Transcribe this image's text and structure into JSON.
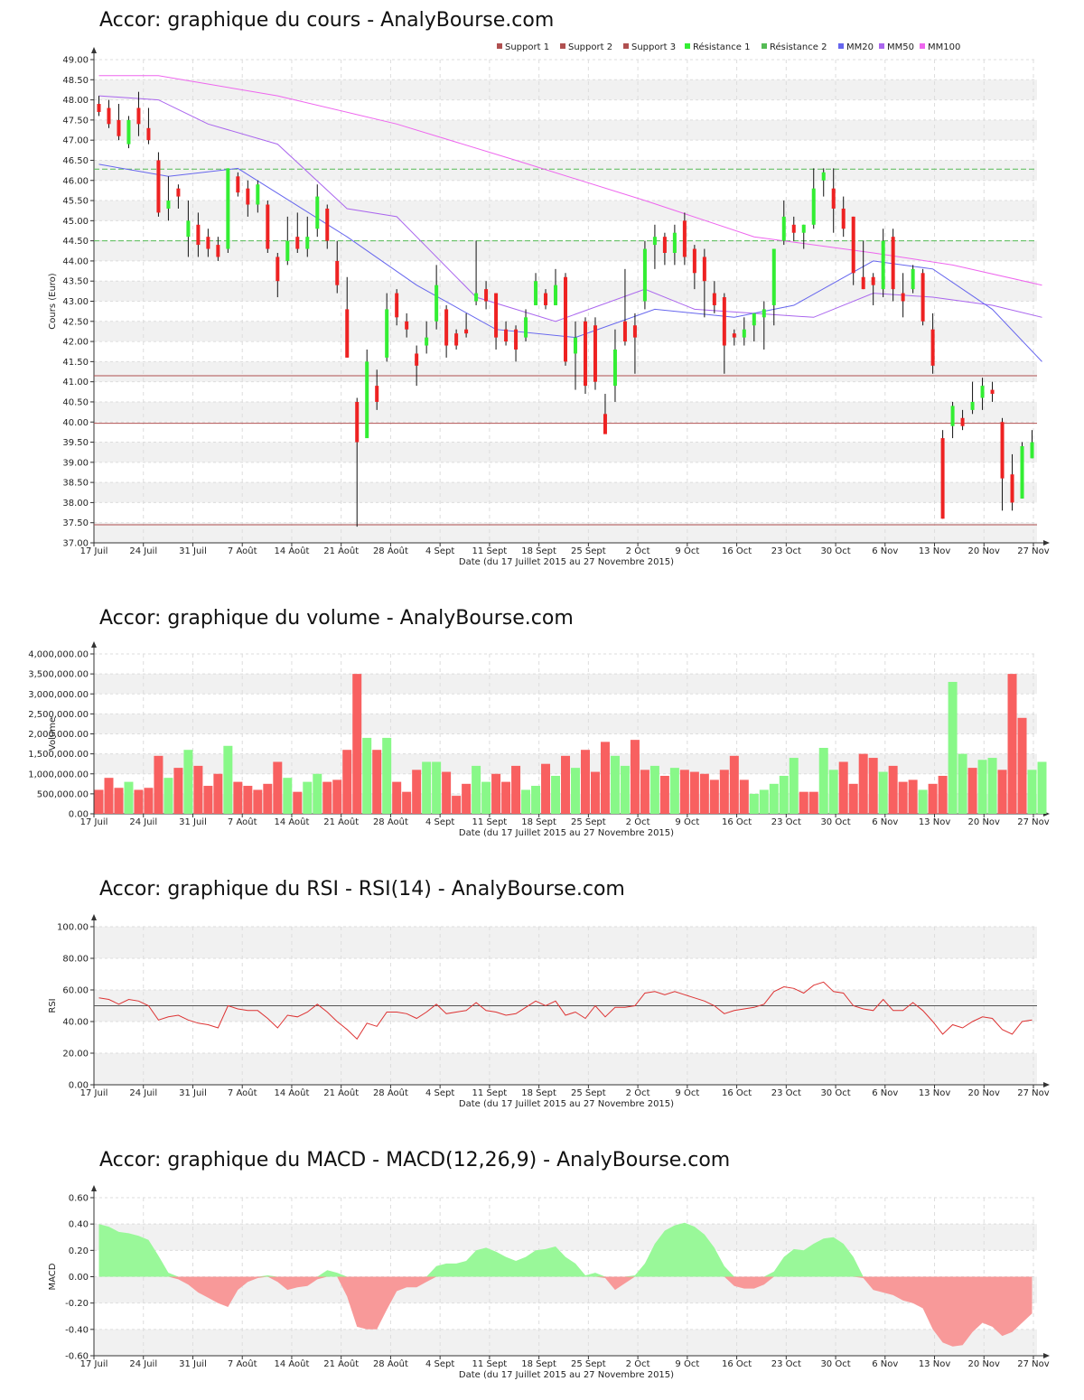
{
  "price_panel": {
    "title": "Accor: graphique du cours - AnalyBourse.com"
  },
  "volume_panel": {
    "title": "Accor: graphique du volume - AnalyBourse.com"
  },
  "rsi_panel": {
    "title": "Accor: graphique du RSI - RSI(14) - AnalyBourse.com"
  },
  "macd_panel": {
    "title": "Accor: graphique du MACD - MACD(12,26,9) - AnalyBourse.com"
  },
  "colors": {
    "up": "#33ee33",
    "down": "#ee2222",
    "vol_up": "#88f888",
    "vol_down": "#f86060",
    "mm20": "#6666ee",
    "mm50": "#aa66ee",
    "mm100": "#ee66ee",
    "support": "#b05050",
    "resistance": "#55bb55",
    "rsi_line": "#dd3333",
    "macd_pos": "#99f899",
    "macd_neg": "#f89999"
  },
  "chart_data": [
    {
      "type": "candlestick",
      "title": "Accor: graphique du cours - AnalyBourse.com",
      "xlabel": "Date (du 17 Juillet 2015 au 27 Novembre 2015)",
      "ylabel": "Cours (Euro)",
      "ylim": [
        37.0,
        49.0
      ],
      "yticks": [
        "37.00",
        "37.50",
        "38.00",
        "38.50",
        "39.00",
        "39.50",
        "40.00",
        "40.50",
        "41.00",
        "41.50",
        "42.00",
        "42.50",
        "43.00",
        "43.50",
        "44.00",
        "44.50",
        "45.00",
        "45.50",
        "46.00",
        "46.50",
        "47.00",
        "47.50",
        "48.00",
        "48.50",
        "49.00"
      ],
      "xticks": [
        "17 Juil",
        "24 Juil",
        "31 Juil",
        "7 Août",
        "14 Août",
        "21 Août",
        "28 Août",
        "4 Sept",
        "11 Sept",
        "18 Sept",
        "25 Sept",
        "2 Oct",
        "9 Oct",
        "16 Oct",
        "23 Oct",
        "30 Oct",
        "6 Nov",
        "13 Nov",
        "20 Nov",
        "27 Nov"
      ],
      "legend": [
        "Support 1",
        "Support 2",
        "Support 3",
        "Résistance 1",
        "Résistance 2",
        "MM20",
        "MM50",
        "MM100"
      ],
      "legend_position": "top-right",
      "support_levels": [
        41.15,
        39.97,
        37.45
      ],
      "resistance_levels": [
        46.28,
        44.5
      ],
      "candles": [
        [
          47.9,
          47.7,
          48.1,
          47.6
        ],
        [
          47.8,
          47.4,
          48.0,
          47.3
        ],
        [
          47.5,
          47.1,
          47.9,
          47.0
        ],
        [
          46.9,
          47.5,
          47.6,
          46.8
        ],
        [
          47.8,
          47.4,
          48.2,
          47.1
        ],
        [
          47.3,
          47.0,
          47.8,
          46.9
        ],
        [
          46.5,
          45.2,
          46.7,
          45.1
        ],
        [
          45.3,
          45.5,
          46.1,
          45.0
        ],
        [
          45.8,
          45.6,
          45.9,
          45.3
        ],
        [
          44.6,
          45.0,
          45.5,
          44.1
        ],
        [
          44.9,
          44.4,
          45.2,
          44.1
        ],
        [
          44.6,
          44.3,
          44.8,
          44.1
        ],
        [
          44.4,
          44.1,
          44.6,
          44.0
        ],
        [
          44.3,
          46.3,
          46.3,
          44.2
        ],
        [
          46.1,
          45.7,
          46.2,
          45.6
        ],
        [
          45.8,
          45.4,
          46.0,
          45.1
        ],
        [
          45.4,
          45.9,
          46.0,
          45.2
        ],
        [
          45.4,
          44.3,
          45.5,
          44.2
        ],
        [
          44.1,
          43.5,
          44.2,
          43.1
        ],
        [
          44.0,
          44.5,
          45.1,
          43.9
        ],
        [
          44.6,
          44.3,
          45.2,
          44.2
        ],
        [
          44.3,
          44.6,
          45.1,
          44.1
        ],
        [
          44.8,
          45.6,
          45.9,
          44.6
        ],
        [
          45.3,
          44.5,
          45.4,
          44.3
        ],
        [
          44.0,
          43.4,
          44.5,
          43.2
        ],
        [
          42.8,
          41.6,
          43.6,
          41.6
        ],
        [
          40.5,
          39.5,
          40.6,
          37.4
        ],
        [
          39.6,
          41.5,
          41.8,
          39.9
        ],
        [
          40.9,
          40.5,
          41.3,
          40.3
        ],
        [
          41.6,
          42.8,
          43.2,
          41.5
        ],
        [
          43.2,
          42.6,
          43.3,
          42.4
        ],
        [
          42.5,
          42.3,
          42.7,
          42.1
        ],
        [
          41.7,
          41.4,
          41.9,
          40.9
        ],
        [
          41.9,
          42.1,
          42.5,
          41.7
        ],
        [
          42.5,
          43.4,
          43.9,
          42.3
        ],
        [
          42.8,
          41.9,
          42.9,
          41.6
        ],
        [
          42.2,
          41.9,
          42.3,
          41.8
        ],
        [
          42.3,
          42.2,
          42.7,
          42.1
        ],
        [
          43.0,
          43.2,
          44.5,
          42.9
        ],
        [
          43.3,
          43.0,
          43.5,
          42.8
        ],
        [
          43.2,
          42.1,
          43.2,
          41.8
        ],
        [
          42.3,
          42.0,
          42.5,
          41.9
        ],
        [
          42.3,
          41.8,
          42.4,
          41.5
        ],
        [
          42.1,
          42.6,
          42.8,
          42.0
        ],
        [
          42.9,
          43.5,
          43.7,
          42.9
        ],
        [
          43.2,
          42.9,
          43.3,
          42.8
        ],
        [
          42.9,
          43.4,
          43.8,
          42.9
        ],
        [
          43.6,
          41.5,
          43.7,
          41.4
        ],
        [
          41.7,
          42.1,
          42.5,
          40.8
        ],
        [
          42.5,
          40.9,
          42.6,
          40.7
        ],
        [
          42.4,
          41.0,
          42.6,
          40.8
        ],
        [
          40.2,
          39.7,
          40.7,
          39.9
        ],
        [
          40.9,
          41.8,
          42.3,
          40.5
        ],
        [
          42.5,
          42.0,
          43.8,
          41.9
        ],
        [
          42.4,
          42.1,
          42.7,
          41.2
        ],
        [
          43.0,
          44.3,
          44.5,
          42.8
        ],
        [
          44.4,
          44.6,
          44.9,
          43.8
        ],
        [
          44.6,
          44.2,
          44.7,
          43.9
        ],
        [
          44.2,
          44.7,
          44.9,
          43.9
        ],
        [
          45.0,
          44.1,
          45.2,
          43.9
        ],
        [
          44.3,
          43.7,
          44.4,
          43.3
        ],
        [
          44.1,
          43.5,
          44.3,
          42.6
        ],
        [
          43.2,
          42.9,
          43.5,
          42.7
        ],
        [
          43.1,
          41.9,
          43.2,
          41.2
        ],
        [
          42.2,
          42.1,
          42.3,
          41.9
        ],
        [
          42.1,
          42.3,
          42.6,
          41.9
        ],
        [
          42.4,
          42.7,
          42.7,
          42.0
        ],
        [
          42.6,
          42.8,
          43.0,
          41.8
        ],
        [
          42.9,
          44.3,
          44.3,
          42.4
        ],
        [
          44.5,
          45.1,
          45.5,
          44.4
        ],
        [
          44.9,
          44.7,
          45.1,
          44.5
        ],
        [
          44.7,
          44.9,
          44.9,
          44.3
        ],
        [
          44.9,
          45.8,
          46.3,
          44.8
        ],
        [
          46.0,
          46.2,
          46.3,
          45.6
        ],
        [
          45.8,
          45.3,
          46.3,
          44.7
        ],
        [
          45.3,
          44.8,
          45.6,
          44.6
        ],
        [
          45.1,
          43.7,
          45.1,
          43.4
        ],
        [
          43.6,
          43.3,
          44.5,
          43.3
        ],
        [
          43.6,
          43.4,
          43.7,
          42.9
        ],
        [
          43.3,
          44.5,
          44.8,
          43.1
        ],
        [
          44.6,
          43.3,
          44.8,
          43.0
        ],
        [
          43.2,
          43.0,
          43.7,
          42.6
        ],
        [
          43.3,
          43.8,
          43.9,
          43.2
        ],
        [
          43.7,
          42.5,
          43.8,
          42.4
        ],
        [
          42.3,
          41.4,
          42.7,
          41.2
        ],
        [
          39.6,
          37.6,
          39.8,
          37.6
        ],
        [
          39.9,
          40.4,
          40.5,
          39.6
        ],
        [
          40.1,
          39.9,
          40.3,
          39.8
        ],
        [
          40.3,
          40.5,
          41.0,
          40.2
        ],
        [
          40.6,
          40.9,
          41.1,
          40.3
        ],
        [
          40.8,
          40.7,
          41.0,
          40.5
        ],
        [
          40.0,
          38.6,
          40.1,
          37.8
        ],
        [
          38.7,
          38.0,
          39.2,
          37.8
        ],
        [
          38.1,
          39.4,
          39.5,
          38.1
        ],
        [
          39.1,
          39.5,
          39.8,
          39.1
        ]
      ],
      "mm20": [
        [
          0,
          46.4
        ],
        [
          7,
          46.1
        ],
        [
          14,
          46.3
        ],
        [
          25,
          44.6
        ],
        [
          32,
          43.4
        ],
        [
          40,
          42.3
        ],
        [
          48,
          42.1
        ],
        [
          56,
          42.8
        ],
        [
          64,
          42.6
        ],
        [
          70,
          42.9
        ],
        [
          78,
          44.0
        ],
        [
          84,
          43.8
        ],
        [
          90,
          42.8
        ],
        [
          95,
          41.5
        ]
      ],
      "mm50": [
        [
          0,
          48.1
        ],
        [
          6,
          48.0
        ],
        [
          11,
          47.4
        ],
        [
          18,
          46.9
        ],
        [
          25,
          45.3
        ],
        [
          30,
          45.1
        ],
        [
          38,
          43.1
        ],
        [
          46,
          42.5
        ],
        [
          55,
          43.3
        ],
        [
          60,
          42.8
        ],
        [
          66,
          42.7
        ],
        [
          72,
          42.6
        ],
        [
          78,
          43.2
        ],
        [
          84,
          43.1
        ],
        [
          90,
          42.9
        ],
        [
          95,
          42.6
        ]
      ],
      "mm100": [
        [
          0,
          48.6
        ],
        [
          6,
          48.6
        ],
        [
          18,
          48.1
        ],
        [
          30,
          47.4
        ],
        [
          42,
          46.5
        ],
        [
          55,
          45.5
        ],
        [
          66,
          44.6
        ],
        [
          78,
          44.2
        ],
        [
          86,
          43.9
        ],
        [
          95,
          43.4
        ]
      ]
    },
    {
      "type": "bar",
      "title": "Accor: graphique du volume - AnalyBourse.com",
      "xlabel": "Date (du 17 Juillet 2015 au 27 Novembre 2015)",
      "ylabel": "Volume",
      "ylim": [
        0,
        4000000
      ],
      "yticks": [
        "0.00",
        "500,000.00",
        "1,000,000.00",
        "1,500,000.00",
        "2,000,000.00",
        "2,500,000.00",
        "3,000,000.00",
        "3,500,000.00",
        "4,000,000.00"
      ],
      "values": [
        600000,
        900000,
        650000,
        800000,
        600000,
        650000,
        1450000,
        900000,
        1150000,
        1600000,
        1200000,
        700000,
        1000000,
        1700000,
        800000,
        700000,
        600000,
        750000,
        1300000,
        900000,
        550000,
        800000,
        1000000,
        800000,
        850000,
        1600000,
        3500000,
        1900000,
        1600000,
        1900000,
        800000,
        550000,
        1100000,
        1300000,
        1300000,
        1050000,
        450000,
        750000,
        1200000,
        800000,
        1000000,
        800000,
        1200000,
        600000,
        700000,
        1250000,
        950000,
        1450000,
        1150000,
        1600000,
        1050000,
        1800000,
        1450000,
        1200000,
        1850000,
        1100000,
        1200000,
        950000,
        1150000,
        1100000,
        1050000,
        1000000,
        850000,
        1100000,
        1450000,
        850000,
        500000,
        600000,
        750000,
        950000,
        1400000,
        550000,
        550000,
        1650000,
        1100000,
        1300000,
        750000,
        1500000,
        1400000,
        1050000,
        1200000,
        800000,
        850000,
        600000,
        750000,
        950000,
        3300000,
        1500000,
        1150000,
        1350000,
        1400000,
        1100000,
        3500000,
        2400000,
        1100000,
        1300000
      ],
      "up": [
        false,
        false,
        false,
        true,
        false,
        false,
        false,
        true,
        false,
        true,
        false,
        false,
        false,
        true,
        false,
        false,
        false,
        false,
        false,
        true,
        false,
        true,
        true,
        false,
        false,
        false,
        false,
        true,
        false,
        true,
        false,
        false,
        false,
        true,
        true,
        false,
        false,
        false,
        true,
        true,
        false,
        false,
        false,
        true,
        true,
        false,
        true,
        false,
        true,
        false,
        false,
        false,
        true,
        true,
        false,
        false,
        true,
        false,
        true,
        false,
        false,
        false,
        false,
        false,
        false,
        false,
        true,
        true,
        true,
        true,
        true,
        false,
        false,
        true,
        true,
        false,
        false,
        false,
        false,
        true,
        false,
        false,
        false,
        true,
        false,
        false,
        true,
        true,
        false,
        true,
        true,
        false,
        false,
        false,
        true,
        true
      ]
    },
    {
      "type": "line",
      "title": "Accor: graphique du RSI - RSI(14) - AnalyBourse.com",
      "xlabel": "Date (du 17 Juillet 2015 au 27 Novembre 2015)",
      "ylabel": "RSI",
      "ylim": [
        0,
        100
      ],
      "yticks": [
        "0.00",
        "20.00",
        "40.00",
        "60.00",
        "80.00",
        "100.00"
      ],
      "reference_line": 50,
      "values": [
        55,
        54,
        51,
        54,
        53,
        50,
        41,
        43,
        44,
        41,
        39,
        38,
        36,
        50,
        48,
        47,
        47,
        42,
        36,
        44,
        43,
        46,
        51,
        46,
        40,
        35,
        29,
        39,
        37,
        46,
        46,
        45,
        42,
        46,
        51,
        45,
        46,
        47,
        52,
        47,
        46,
        44,
        45,
        49,
        53,
        50,
        53,
        44,
        46,
        42,
        50,
        43,
        49,
        49,
        50,
        58,
        59,
        57,
        59,
        57,
        55,
        53,
        50,
        45,
        47,
        48,
        49,
        51,
        59,
        62,
        61,
        58,
        63,
        65,
        59,
        58,
        50,
        48,
        47,
        54,
        47,
        47,
        52,
        47,
        40,
        32,
        38,
        36,
        40,
        43,
        42,
        35,
        32,
        40,
        41
      ],
      "xticks": [
        "17 Juil",
        "24 Juil",
        "31 Juil",
        "7 Août",
        "14 Août",
        "21 Août",
        "28 Août",
        "4 Sept",
        "11 Sept",
        "18 Sept",
        "25 Sept",
        "2 Oct",
        "9 Oct",
        "16 Oct",
        "23 Oct",
        "30 Oct",
        "6 Nov",
        "13 Nov",
        "20 Nov",
        "27 Nov"
      ]
    },
    {
      "type": "area",
      "title": "Accor: graphique du MACD - MACD(12,26,9) - AnalyBourse.com",
      "xlabel": "Date (du 17 Juillet 2015 au 27 Novembre 2015)",
      "ylabel": "MACD",
      "ylim": [
        -0.6,
        0.6
      ],
      "yticks": [
        "-0.60",
        "-0.40",
        "-0.20",
        "0.00",
        "0.20",
        "0.40",
        "0.60"
      ],
      "values": [
        0.4,
        0.38,
        0.34,
        0.33,
        0.31,
        0.28,
        0.16,
        0.03,
        -0.02,
        -0.06,
        -0.12,
        -0.16,
        -0.2,
        -0.23,
        -0.1,
        -0.04,
        -0.01,
        0.01,
        -0.04,
        -0.1,
        -0.08,
        -0.07,
        -0.02,
        0.05,
        0.03,
        -0.15,
        -0.38,
        -0.4,
        -0.4,
        -0.25,
        -0.11,
        -0.08,
        -0.08,
        -0.04,
        0.08,
        0.1,
        0.1,
        0.12,
        0.2,
        0.22,
        0.19,
        0.15,
        0.12,
        0.15,
        0.2,
        0.21,
        0.23,
        0.15,
        0.1,
        0.01,
        0.03,
        -0.01,
        -0.1,
        -0.05,
        0.01,
        0.1,
        0.25,
        0.35,
        0.39,
        0.41,
        0.38,
        0.32,
        0.22,
        0.08,
        -0.07,
        -0.09,
        -0.09,
        -0.06,
        0.04,
        0.15,
        0.21,
        0.2,
        0.25,
        0.29,
        0.3,
        0.25,
        0.15,
        -0.01,
        -0.1,
        -0.12,
        -0.14,
        -0.18,
        -0.2,
        -0.24,
        -0.4,
        -0.5,
        -0.53,
        -0.52,
        -0.42,
        -0.35,
        -0.38,
        -0.45,
        -0.42,
        -0.35,
        -0.28
      ],
      "xticks": [
        "17 Juil",
        "24 Juil",
        "31 Juil",
        "7 Août",
        "14 Août",
        "21 Août",
        "28 Août",
        "4 Sept",
        "11 Sept",
        "18 Sept",
        "25 Sept",
        "2 Oct",
        "9 Oct",
        "16 Oct",
        "23 Oct",
        "30 Oct",
        "6 Nov",
        "13 Nov",
        "20 Nov",
        "27 Nov"
      ]
    }
  ]
}
